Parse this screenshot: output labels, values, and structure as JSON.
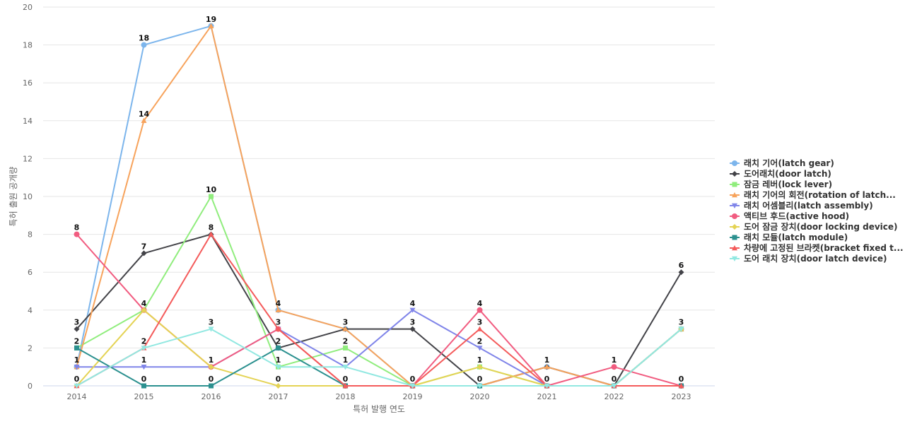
{
  "chart_data": {
    "type": "line",
    "title": "",
    "xlabel": "특허 발행 연도",
    "ylabel": "특허 출원 공개량",
    "x": [
      "2014",
      "2015",
      "2016",
      "2017",
      "2018",
      "2019",
      "2020",
      "2021",
      "2022",
      "2023"
    ],
    "ylim": [
      0,
      20
    ],
    "yticks": [
      0,
      2,
      4,
      6,
      8,
      10,
      12,
      14,
      16,
      18,
      20
    ],
    "grid": true,
    "legend_position": "right",
    "series": [
      {
        "name": "래치 기어(latch gear)",
        "color": "#7cb5ec",
        "marker": "circle",
        "values": [
          1,
          18,
          19,
          4,
          3,
          0,
          0,
          1,
          0,
          3
        ]
      },
      {
        "name": "도어래치(door latch)",
        "color": "#434348",
        "marker": "diamond",
        "values": [
          3,
          7,
          8,
          2,
          3,
          3,
          0,
          1,
          0,
          6
        ]
      },
      {
        "name": "잠금 레버(lock lever)",
        "color": "#90ed7d",
        "marker": "square",
        "values": [
          2,
          4,
          10,
          1,
          2,
          0,
          1,
          0,
          0,
          3
        ]
      },
      {
        "name": "래치 기어의 회전(rotation of latch...",
        "color": "#f7a35c",
        "marker": "triangle",
        "values": [
          1,
          14,
          19,
          4,
          3,
          0,
          0,
          1,
          0,
          3
        ]
      },
      {
        "name": "래치 어셈블리(latch assembly)",
        "color": "#8085e9",
        "marker": "triangle-down",
        "values": [
          1,
          1,
          1,
          3,
          1,
          4,
          2,
          0,
          0,
          3
        ]
      },
      {
        "name": "액티브 후드(active hood)",
        "color": "#f15c80",
        "marker": "circle",
        "values": [
          8,
          4,
          1,
          3,
          0,
          0,
          4,
          0,
          1,
          0
        ]
      },
      {
        "name": "도어 잠금 장치(door locking device)",
        "color": "#e4d354",
        "marker": "diamond",
        "values": [
          0,
          4,
          1,
          0,
          0,
          0,
          1,
          0,
          0,
          3
        ]
      },
      {
        "name": "래치 모듈(latch module)",
        "color": "#2b908f",
        "marker": "square",
        "values": [
          2,
          0,
          0,
          2,
          0,
          0,
          0,
          0,
          0,
          0
        ]
      },
      {
        "name": "차량에 고정된 브라켓(bracket fixed t...",
        "color": "#f45b5b",
        "marker": "triangle",
        "values": [
          0,
          2,
          8,
          3,
          0,
          0,
          3,
          0,
          0,
          0
        ]
      },
      {
        "name": "도어 래치 장치(door latch device)",
        "color": "#91e8e1",
        "marker": "triangle-down",
        "values": [
          0,
          2,
          3,
          1,
          1,
          0,
          0,
          0,
          0,
          3
        ]
      }
    ],
    "data_labels": [
      {
        "x": "2014",
        "y": 8,
        "text": "8"
      },
      {
        "x": "2014",
        "y": 3,
        "text": "3"
      },
      {
        "x": "2014",
        "y": 2,
        "text": "2"
      },
      {
        "x": "2014",
        "y": 1,
        "text": "1"
      },
      {
        "x": "2014",
        "y": 0,
        "text": "0"
      },
      {
        "x": "2015",
        "y": 18,
        "text": "18"
      },
      {
        "x": "2015",
        "y": 14,
        "text": "14"
      },
      {
        "x": "2015",
        "y": 7,
        "text": "7"
      },
      {
        "x": "2015",
        "y": 4,
        "text": "4"
      },
      {
        "x": "2015",
        "y": 2,
        "text": "2"
      },
      {
        "x": "2015",
        "y": 1,
        "text": "1"
      },
      {
        "x": "2015",
        "y": 0,
        "text": "0"
      },
      {
        "x": "2016",
        "y": 19,
        "text": "19"
      },
      {
        "x": "2016",
        "y": 10,
        "text": "10"
      },
      {
        "x": "2016",
        "y": 8,
        "text": "8"
      },
      {
        "x": "2016",
        "y": 3,
        "text": "3"
      },
      {
        "x": "2016",
        "y": 1,
        "text": "1"
      },
      {
        "x": "2016",
        "y": 0,
        "text": "0"
      },
      {
        "x": "2017",
        "y": 4,
        "text": "4"
      },
      {
        "x": "2017",
        "y": 3,
        "text": "3"
      },
      {
        "x": "2017",
        "y": 2,
        "text": "2"
      },
      {
        "x": "2017",
        "y": 1,
        "text": "1"
      },
      {
        "x": "2017",
        "y": 0,
        "text": "0"
      },
      {
        "x": "2018",
        "y": 3,
        "text": "3"
      },
      {
        "x": "2018",
        "y": 2,
        "text": "2"
      },
      {
        "x": "2018",
        "y": 1,
        "text": "1"
      },
      {
        "x": "2018",
        "y": 0,
        "text": "0"
      },
      {
        "x": "2019",
        "y": 4,
        "text": "4"
      },
      {
        "x": "2019",
        "y": 3,
        "text": "3"
      },
      {
        "x": "2019",
        "y": 0,
        "text": "0"
      },
      {
        "x": "2020",
        "y": 4,
        "text": "4"
      },
      {
        "x": "2020",
        "y": 3,
        "text": "3"
      },
      {
        "x": "2020",
        "y": 2,
        "text": "2"
      },
      {
        "x": "2020",
        "y": 1,
        "text": "1"
      },
      {
        "x": "2020",
        "y": 0,
        "text": "0"
      },
      {
        "x": "2021",
        "y": 1,
        "text": "1"
      },
      {
        "x": "2021",
        "y": 0,
        "text": "0"
      },
      {
        "x": "2022",
        "y": 1,
        "text": "1"
      },
      {
        "x": "2022",
        "y": 0,
        "text": "0"
      },
      {
        "x": "2023",
        "y": 6,
        "text": "6"
      },
      {
        "x": "2023",
        "y": 3,
        "text": "3"
      },
      {
        "x": "2023",
        "y": 0,
        "text": "0"
      }
    ]
  }
}
